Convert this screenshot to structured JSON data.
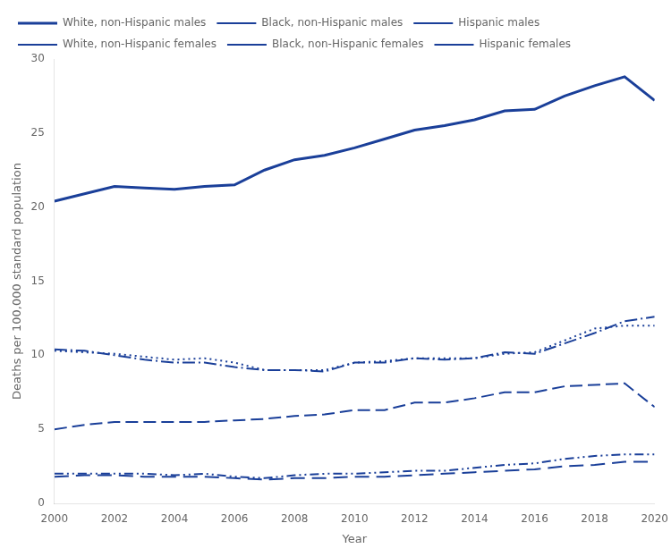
{
  "chart_data": {
    "type": "line",
    "x": [
      2000,
      2001,
      2002,
      2003,
      2004,
      2005,
      2006,
      2007,
      2008,
      2009,
      2010,
      2011,
      2012,
      2013,
      2014,
      2015,
      2016,
      2017,
      2018,
      2019,
      2020
    ],
    "series": [
      {
        "name": "White, non-Hispanic males",
        "color": "#1a3f99",
        "line_style": "solid",
        "values": [
          20.4,
          20.9,
          21.4,
          21.3,
          21.2,
          21.4,
          21.5,
          22.5,
          23.2,
          23.5,
          24.0,
          24.6,
          25.2,
          25.5,
          25.9,
          26.5,
          26.6,
          27.5,
          28.2,
          28.8,
          27.2
        ]
      },
      {
        "name": "Black, non-Hispanic males",
        "color": "#1a3f99",
        "line_style": "dashdot",
        "values": [
          10.4,
          10.3,
          10.0,
          9.7,
          9.5,
          9.5,
          9.2,
          9.0,
          9.0,
          8.9,
          9.5,
          9.5,
          9.8,
          9.7,
          9.8,
          10.2,
          10.1,
          10.8,
          11.5,
          12.3,
          12.6
        ]
      },
      {
        "name": "Hispanic males",
        "color": "#1a3f99",
        "line_style": "dotted",
        "values": [
          10.3,
          10.2,
          10.1,
          9.9,
          9.7,
          9.8,
          9.5,
          9.0,
          9.0,
          9.0,
          9.5,
          9.6,
          9.8,
          9.8,
          9.8,
          10.1,
          10.2,
          11.0,
          11.8,
          12.0,
          12.0
        ]
      },
      {
        "name": "White, non-Hispanic females",
        "color": "#1a3f99",
        "line_style": "dashed",
        "values": [
          5.0,
          5.3,
          5.5,
          5.5,
          5.5,
          5.5,
          5.6,
          5.7,
          5.9,
          6.0,
          6.3,
          6.3,
          6.8,
          6.8,
          7.1,
          7.5,
          7.5,
          7.9,
          8.0,
          8.1,
          6.5
        ]
      },
      {
        "name": "Black, non-Hispanic females",
        "color": "#1a3f99",
        "line_style": "dashdotdot",
        "values": [
          2.0,
          2.0,
          2.0,
          2.0,
          1.9,
          2.0,
          1.8,
          1.7,
          1.9,
          2.0,
          2.0,
          2.1,
          2.2,
          2.2,
          2.4,
          2.6,
          2.7,
          3.0,
          3.2,
          3.3,
          3.3
        ]
      },
      {
        "name": "Hispanic females",
        "color": "#1a3f99",
        "line_style": "longdash",
        "values": [
          1.8,
          1.9,
          1.9,
          1.8,
          1.8,
          1.8,
          1.7,
          1.6,
          1.7,
          1.7,
          1.8,
          1.8,
          1.9,
          2.0,
          2.1,
          2.2,
          2.3,
          2.5,
          2.6,
          2.8,
          2.8
        ]
      }
    ],
    "xlabel": "Year",
    "ylabel": "Deaths per 100,000 standard population",
    "xlim": [
      2000,
      2020
    ],
    "xticks": [
      2000,
      2002,
      2004,
      2006,
      2008,
      2010,
      2012,
      2014,
      2016,
      2018,
      2020
    ],
    "ylim": [
      0,
      30
    ],
    "yticks": [
      0,
      5,
      10,
      15,
      20,
      25,
      30
    ],
    "grid": false,
    "legend": "upper left"
  }
}
